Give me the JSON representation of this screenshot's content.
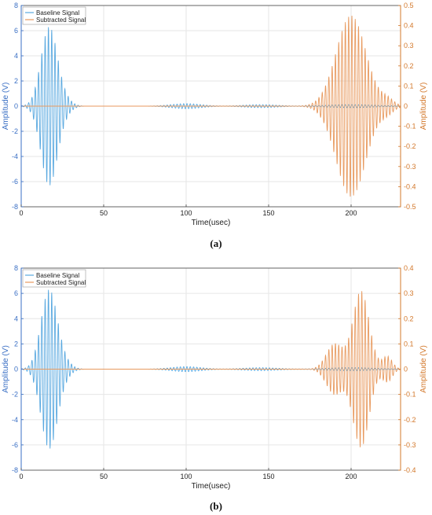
{
  "colors": {
    "baseline": "#5aa9e0",
    "subtracted": "#e89a5f",
    "left_axis": "#3a6fc4",
    "right_axis": "#d3782b",
    "grid": "#e6e6e6"
  },
  "chart_data": [
    {
      "type": "line",
      "panel_label": "(a)",
      "xlabel": "Time(usec)",
      "ylabel_left": "Amplitude (V)",
      "ylabel_right": "Amplitude (V)",
      "xlim": [
        0,
        230
      ],
      "ylim_left": [
        -8,
        8
      ],
      "ylim_right": [
        -0.5,
        0.5
      ],
      "x_ticks": [
        "0",
        "50",
        "100",
        "150",
        "200"
      ],
      "y_left_ticks": [
        "8",
        "6",
        "4",
        "2",
        "0",
        "-2",
        "-4",
        "-6",
        "-8"
      ],
      "y_right_ticks": [
        "0.5",
        "0.4",
        "0.3",
        "0.2",
        "0.1",
        "0",
        "-0.1",
        "-0.2",
        "-0.3",
        "-0.4",
        "-0.5"
      ],
      "grid": true,
      "legend_position": "top-left",
      "series": [
        {
          "name": "Baseline Signal",
          "axis": "left",
          "frequency_cycles_per_usec": 0.5,
          "packets": [
            {
              "center": 17,
              "width": 5,
              "amplitude": 6.3
            },
            {
              "center": 27,
              "width": 4,
              "amplitude": 0.35
            },
            {
              "center": 100,
              "width": 9,
              "amplitude": 0.2
            },
            {
              "center": 145,
              "width": 10,
              "amplitude": 0.12
            },
            {
              "center": 200,
              "width": 14,
              "amplitude": 0.12
            }
          ]
        },
        {
          "name": "Subtracted Signal",
          "axis": "right",
          "frequency_cycles_per_usec": 0.5,
          "packets": [
            {
              "center": 200,
              "width": 9,
              "amplitude": 0.45
            },
            {
              "center": 222,
              "width": 4,
              "amplitude": 0.03
            }
          ]
        }
      ]
    },
    {
      "type": "line",
      "panel_label": "(b)",
      "xlabel": "Time(usec)",
      "ylabel_left": "Amplitude (V)",
      "ylabel_right": "Amplitude (V)",
      "xlim": [
        0,
        230
      ],
      "ylim_left": [
        -8,
        8
      ],
      "ylim_right": [
        -0.4,
        0.4
      ],
      "x_ticks": [
        "0",
        "50",
        "100",
        "150",
        "200"
      ],
      "y_left_ticks": [
        "8",
        "6",
        "4",
        "2",
        "0",
        "-2",
        "-4",
        "-6",
        "-8"
      ],
      "y_right_ticks": [
        "0.4",
        "0.3",
        "0.2",
        "0.1",
        "0",
        "-0.1",
        "-0.2",
        "-0.3",
        "-0.4"
      ],
      "grid": true,
      "legend_position": "top-left",
      "series": [
        {
          "name": "Baseline Signal",
          "axis": "left",
          "frequency_cycles_per_usec": 0.5,
          "packets": [
            {
              "center": 17,
              "width": 5,
              "amplitude": 6.3
            },
            {
              "center": 27,
              "width": 4,
              "amplitude": 0.35
            },
            {
              "center": 100,
              "width": 9,
              "amplitude": 0.2
            },
            {
              "center": 145,
              "width": 10,
              "amplitude": 0.12
            },
            {
              "center": 200,
              "width": 14,
              "amplitude": 0.12
            }
          ]
        },
        {
          "name": "Subtracted Signal",
          "axis": "right",
          "frequency_cycles_per_usec": 0.5,
          "packets": [
            {
              "center": 190,
              "width": 5,
              "amplitude": 0.1
            },
            {
              "center": 206,
              "width": 5,
              "amplitude": 0.31
            },
            {
              "center": 222,
              "width": 3,
              "amplitude": 0.05
            }
          ]
        }
      ]
    }
  ]
}
